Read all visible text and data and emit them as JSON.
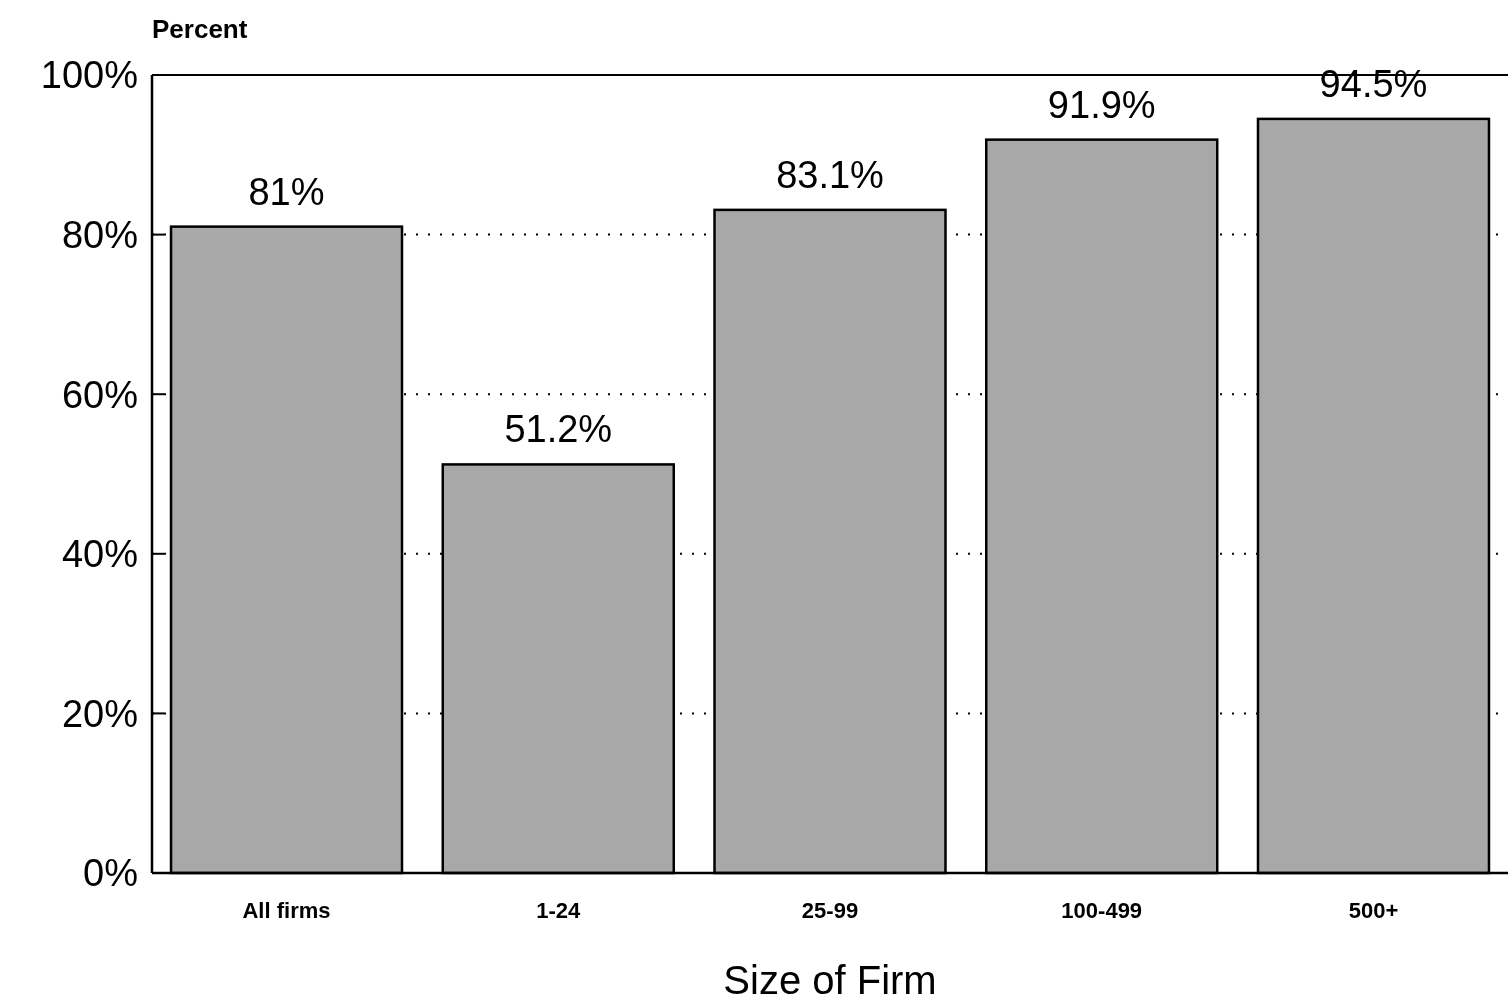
{
  "chart_data": {
    "type": "bar",
    "ylabel": "Percent",
    "xlabel": "Size of Firm",
    "categories": [
      "All firms",
      "1-24",
      "25-99",
      "100-499",
      "500+"
    ],
    "values": [
      81,
      51.2,
      83.1,
      91.9,
      94.5
    ],
    "value_labels": [
      "81%",
      "51.2%",
      "83.1%",
      "91.9%",
      "94.5%"
    ],
    "color": "#a8a8a8",
    "ylim": [
      0,
      100
    ],
    "yticks": [
      {
        "value": 0,
        "label": "0%"
      },
      {
        "value": 20,
        "label": "20%"
      },
      {
        "value": 40,
        "label": "40%"
      },
      {
        "value": 60,
        "label": "60%"
      },
      {
        "value": 80,
        "label": "80%"
      },
      {
        "value": 100,
        "label": "100%"
      }
    ],
    "grid": "y"
  }
}
